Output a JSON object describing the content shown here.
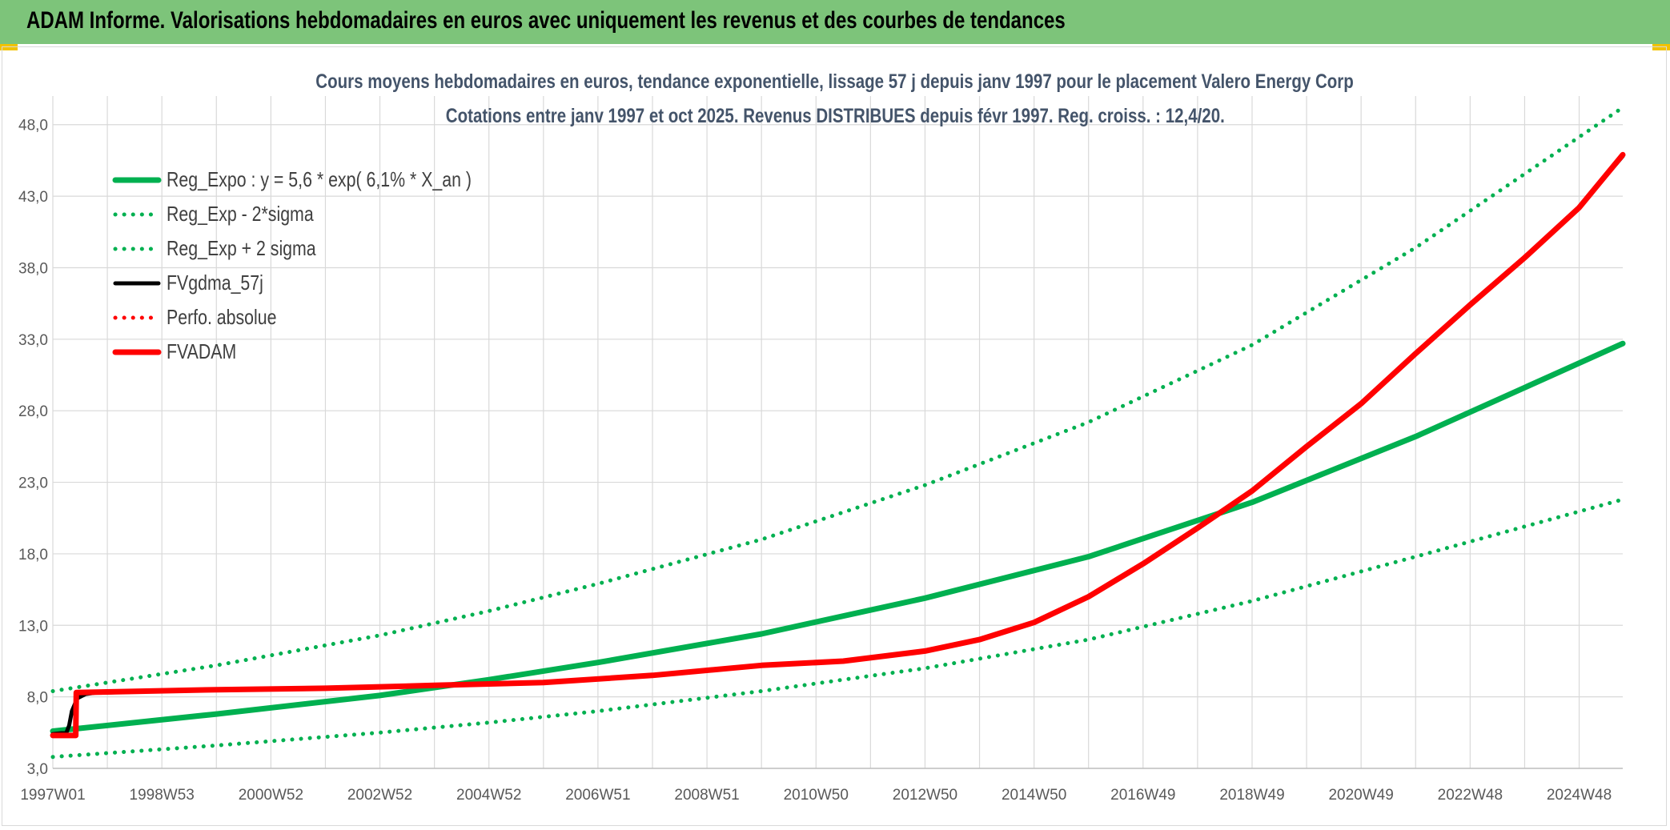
{
  "banner": {
    "title": "ADAM Informe. Valorisations hebdomadaires en euros avec uniquement les revenus et des courbes de tendances"
  },
  "colors": {
    "banner_bg": "#7dc47a",
    "reg_expo": "#00b050",
    "red": "#ff0000",
    "black": "#000000",
    "title_text": "#44546a",
    "grid": "#d9d9d9"
  },
  "chart_data": {
    "type": "line",
    "title": "Cours moyens hebdomadaires en euros, tendance exponentielle, lissage 57 j depuis janv 1997 pour le placement Valero Energy Corp",
    "subtitle": "Cotations entre janv 1997 et oct 2025. Revenus DISTRIBUES depuis févr 1997. Reg. croiss. : 12,4/20.",
    "xlabel": "",
    "ylabel": "",
    "ylim": [
      3.0,
      50.0
    ],
    "y_ticks": [
      "3,0",
      "8,0",
      "13,0",
      "18,0",
      "23,0",
      "28,0",
      "33,0",
      "38,0",
      "43,0",
      "48,0"
    ],
    "y_tick_values": [
      3,
      8,
      13,
      18,
      23,
      28,
      33,
      38,
      43,
      48
    ],
    "xlim": [
      1997.0,
      2025.8
    ],
    "x_ticks": [
      "1997W01",
      "1998W53",
      "2000W52",
      "2002W52",
      "2004W52",
      "2006W51",
      "2008W51",
      "2010W50",
      "2012W50",
      "2014W50",
      "2016W49",
      "2018W49",
      "2020W49",
      "2022W48",
      "2024W48"
    ],
    "x_tick_values": [
      1997.0,
      1999.0,
      2001.0,
      2003.0,
      2005.0,
      2007.0,
      2009.0,
      2011.0,
      2013.0,
      2015.0,
      2017.0,
      2019.0,
      2021.0,
      2023.0,
      2025.0
    ],
    "grid": true,
    "legend_position": "top-left",
    "series": [
      {
        "name": "Reg_Expo : y = 5,6 * exp( 6,1% *  X_an )",
        "style": "solid-thick",
        "color": "#00b050",
        "x": [
          1997.0,
          2000.0,
          2003.0,
          2005.0,
          2007.0,
          2010.0,
          2013.0,
          2016.0,
          2019.0,
          2022.0,
          2025.8
        ],
        "y": [
          5.6,
          6.8,
          8.1,
          9.2,
          10.4,
          12.4,
          14.9,
          17.8,
          21.6,
          26.2,
          32.7
        ]
      },
      {
        "name": "Reg_Exp - 2*sigma",
        "style": "dotted",
        "color": "#00b050",
        "x": [
          1997.0,
          2000.0,
          2003.0,
          2005.0,
          2007.0,
          2010.0,
          2013.0,
          2016.0,
          2019.0,
          2022.0,
          2025.8
        ],
        "y": [
          3.8,
          4.6,
          5.5,
          6.2,
          7.0,
          8.4,
          10.0,
          12.0,
          14.7,
          17.8,
          21.8
        ]
      },
      {
        "name": "Reg_Exp + 2 sigma",
        "style": "dotted",
        "color": "#00b050",
        "x": [
          1997.0,
          2000.0,
          2003.0,
          2005.0,
          2007.0,
          2010.0,
          2013.0,
          2016.0,
          2019.0,
          2022.0,
          2025.8
        ],
        "y": [
          8.4,
          10.2,
          12.3,
          14.0,
          15.9,
          19.0,
          22.8,
          27.2,
          32.6,
          39.4,
          49.2
        ]
      },
      {
        "name": "FVgdma_57j",
        "style": "solid",
        "color": "#000000",
        "x": [
          1997.0,
          1997.25,
          1997.3,
          1997.35,
          1997.45,
          1997.6,
          1997.8,
          1998.0,
          2000.0,
          2002.0,
          2004.0,
          2006.0,
          2008.0,
          2010.0,
          2011.5,
          2013.0,
          2014.0,
          2015.0,
          2016.0,
          2017.0,
          2018.0,
          2019.0,
          2020.0,
          2021.0,
          2022.0,
          2023.0,
          2024.0,
          2025.0,
          2025.8
        ],
        "y": [
          5.4,
          5.5,
          6.0,
          7.0,
          7.9,
          8.2,
          8.3,
          8.3,
          8.5,
          8.6,
          8.8,
          9.0,
          9.5,
          10.2,
          10.5,
          11.2,
          12.0,
          13.2,
          15.0,
          17.3,
          19.8,
          22.4,
          25.5,
          28.5,
          32.0,
          35.4,
          38.7,
          42.2,
          45.8
        ]
      },
      {
        "name": "Perfo. absolue",
        "style": "dotted",
        "color": "#ff0000",
        "x": [
          1997.0,
          1997.42,
          1997.43,
          2000.0,
          2002.0,
          2004.0,
          2006.0,
          2008.0,
          2010.0,
          2011.5,
          2013.0,
          2014.0,
          2015.0,
          2016.0,
          2017.0,
          2018.0,
          2019.0,
          2020.0,
          2021.0,
          2022.0,
          2023.0,
          2024.0,
          2025.0,
          2025.8
        ],
        "y": [
          5.3,
          5.3,
          8.3,
          8.5,
          8.6,
          8.8,
          9.0,
          9.5,
          10.2,
          10.5,
          11.2,
          12.0,
          13.2,
          15.0,
          17.3,
          19.8,
          22.4,
          25.5,
          28.5,
          32.0,
          35.4,
          38.7,
          42.2,
          45.9
        ]
      },
      {
        "name": "FVADAM",
        "style": "solid-thick",
        "color": "#ff0000",
        "x": [
          1997.0,
          1997.42,
          1997.43,
          2000.0,
          2002.0,
          2004.0,
          2006.0,
          2008.0,
          2010.0,
          2011.5,
          2013.0,
          2014.0,
          2015.0,
          2016.0,
          2017.0,
          2018.0,
          2019.0,
          2020.0,
          2021.0,
          2022.0,
          2023.0,
          2024.0,
          2025.0,
          2025.8
        ],
        "y": [
          5.3,
          5.3,
          8.3,
          8.5,
          8.6,
          8.8,
          9.0,
          9.5,
          10.2,
          10.5,
          11.2,
          12.0,
          13.2,
          15.0,
          17.3,
          19.8,
          22.4,
          25.5,
          28.5,
          32.0,
          35.4,
          38.7,
          42.2,
          45.9
        ]
      }
    ]
  }
}
